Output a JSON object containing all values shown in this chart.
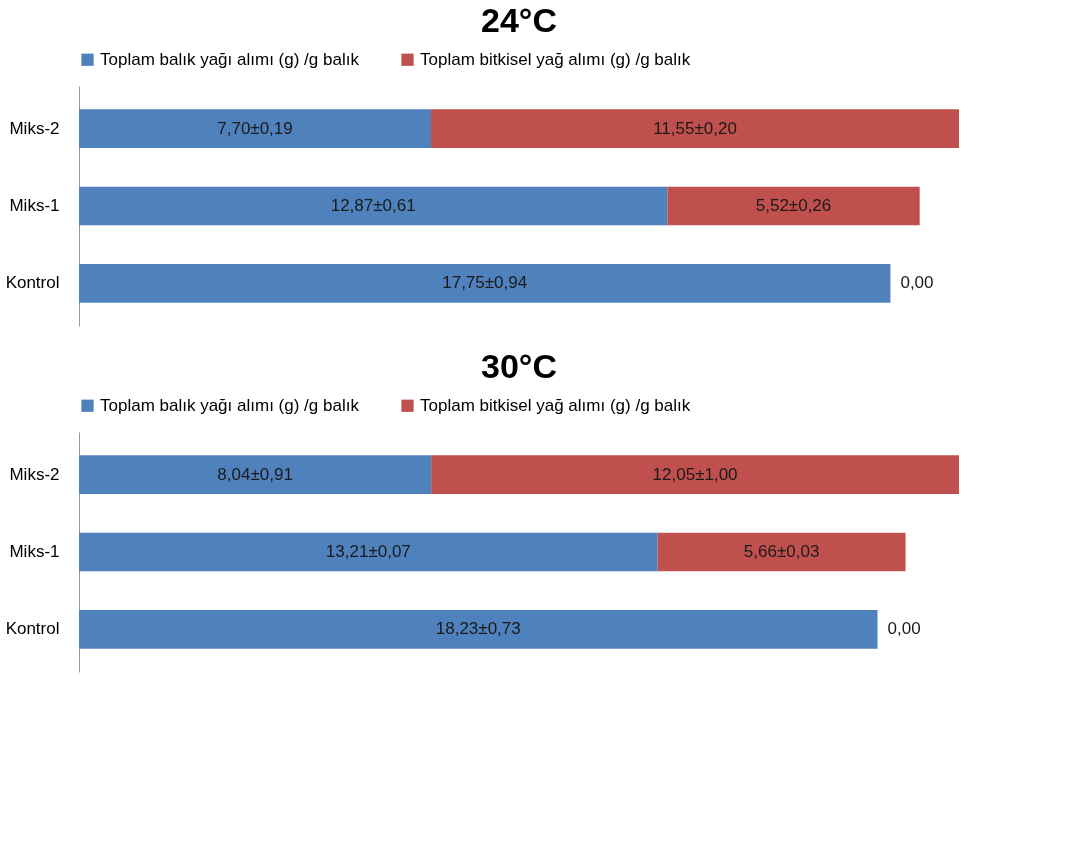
{
  "chart_data": [
    {
      "type": "bar",
      "title": "24°C",
      "orientation": "horizontal",
      "stacked": true,
      "legend": "top",
      "grid": false,
      "categories": [
        "Miks-2",
        "Miks-1",
        "Kontrol"
      ],
      "series": [
        {
          "name": "Toplam balık yağı alımı (g) /g balık",
          "color": "#4f81bd",
          "values": [
            7.7,
            12.87,
            17.75
          ],
          "value_labels": [
            "7,70±0,19",
            "12,87±0,61",
            "17,75±0,94"
          ]
        },
        {
          "name": "Toplam bitkisel yağ alımı (g) /g balık",
          "color": "#c0504d",
          "values": [
            11.55,
            5.52,
            0.0
          ],
          "value_labels": [
            "11,55±0,20",
            "5,52±0,26",
            "0,00"
          ]
        }
      ]
    },
    {
      "type": "bar",
      "title": "30°C",
      "orientation": "horizontal",
      "stacked": true,
      "legend": "top",
      "grid": false,
      "categories": [
        "Miks-2",
        "Miks-1",
        "Kontrol"
      ],
      "series": [
        {
          "name": "Toplam balık yağı alımı (g) /g balık",
          "color": "#4f81bd",
          "values": [
            8.04,
            13.21,
            18.23
          ],
          "value_labels": [
            "8,04±0,91",
            "13,21±0,07",
            "18,23±0,73"
          ]
        },
        {
          "name": "Toplam bitkisel yağ alımı (g) /g balık",
          "color": "#c0504d",
          "values": [
            12.05,
            5.66,
            0.0
          ],
          "value_labels": [
            "12,05±1,00",
            "5,66±0,03",
            "0,00"
          ]
        }
      ]
    }
  ]
}
